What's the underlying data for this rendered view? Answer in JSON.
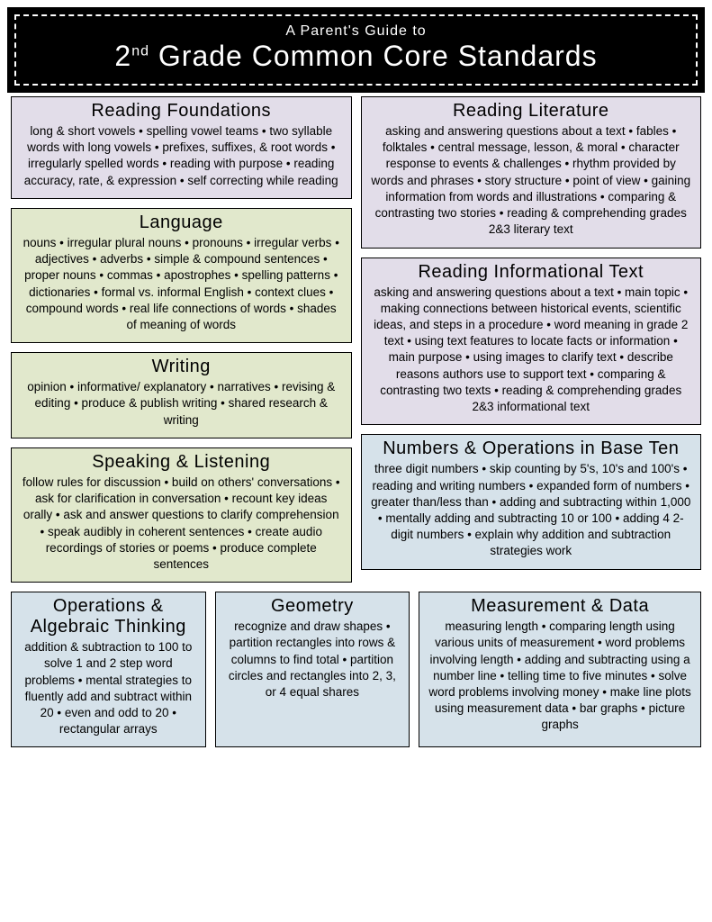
{
  "header": {
    "subtitle": "A Parent's Guide to",
    "title_pre": "2",
    "title_sup": "nd",
    "title_post": " Grade Common Core Standards"
  },
  "colors": {
    "purple": "#e2dde9",
    "green": "#e1e8cc",
    "blue": "#d6e2ea",
    "header_bg": "#000000",
    "header_text": "#ffffff"
  },
  "boxes": {
    "reading_foundations": {
      "title": "Reading Foundations",
      "body": "long & short vowels • spelling vowel teams • two syllable words with long vowels • prefixes, suffixes, & root words • irregularly spelled words • reading with purpose • reading accuracy, rate, & expression • self correcting while reading"
    },
    "language": {
      "title": "Language",
      "body": "nouns • irregular plural nouns • pronouns • irregular verbs • adjectives • adverbs • simple & compound sentences • proper nouns • commas • apostrophes • spelling patterns • dictionaries • formal vs. informal English • context clues • compound words • real life connections of words • shades of meaning of words"
    },
    "writing": {
      "title": "Writing",
      "body": "opinion • informative/ explanatory • narratives • revising & editing • produce & publish writing • shared research & writing"
    },
    "speaking_listening": {
      "title": "Speaking & Listening",
      "body": "follow rules for discussion • build on others' conversations • ask for clarification in conversation • recount key ideas orally • ask and answer questions to clarify comprehension • speak audibly in coherent sentences • create audio recordings of stories or poems • produce complete sentences"
    },
    "reading_literature": {
      "title": "Reading Literature",
      "body": "asking and answering questions about a text • fables • folktales • central message, lesson, & moral • character response to events & challenges • rhythm provided by words and phrases • story structure • point of view • gaining information from words and illustrations • comparing & contrasting two stories • reading & comprehending grades 2&3 literary text"
    },
    "reading_informational": {
      "title": "Reading Informational Text",
      "body": "asking and answering questions about a text • main topic • making connections between historical events, scientific ideas, and steps in a procedure • word meaning in grade 2 text • using text features to locate facts or information • main purpose • using images to clarify text • describe reasons authors use to support text • comparing & contrasting two texts • reading & comprehending grades 2&3 informational text"
    },
    "numbers_base_ten": {
      "title": "Numbers & Operations in Base Ten",
      "body": "three digit numbers • skip counting by 5's, 10's and 100's • reading and writing numbers • expanded form of numbers • greater than/less than • adding and subtracting within 1,000 • mentally adding and subtracting 10 or 100 • adding 4 2-digit numbers • explain why addition and subtraction strategies work"
    },
    "operations_algebraic": {
      "title": "Operations & Algebraic Thinking",
      "body": "addition & subtraction to 100 to solve 1 and 2 step word problems • mental strategies to fluently add and subtract within 20 • even and odd to 20 • rectangular arrays"
    },
    "geometry": {
      "title": "Geometry",
      "body": "recognize and draw shapes • partition rectangles into rows & columns to find total • partition circles and rectangles into 2, 3, or 4 equal shares"
    },
    "measurement_data": {
      "title": "Measurement & Data",
      "body": "measuring length • comparing length using various units of measurement • word problems involving length • adding and subtracting using a number line • telling time to five minutes • solve word problems involving money • make line plots using measurement data • bar graphs • picture graphs"
    }
  }
}
